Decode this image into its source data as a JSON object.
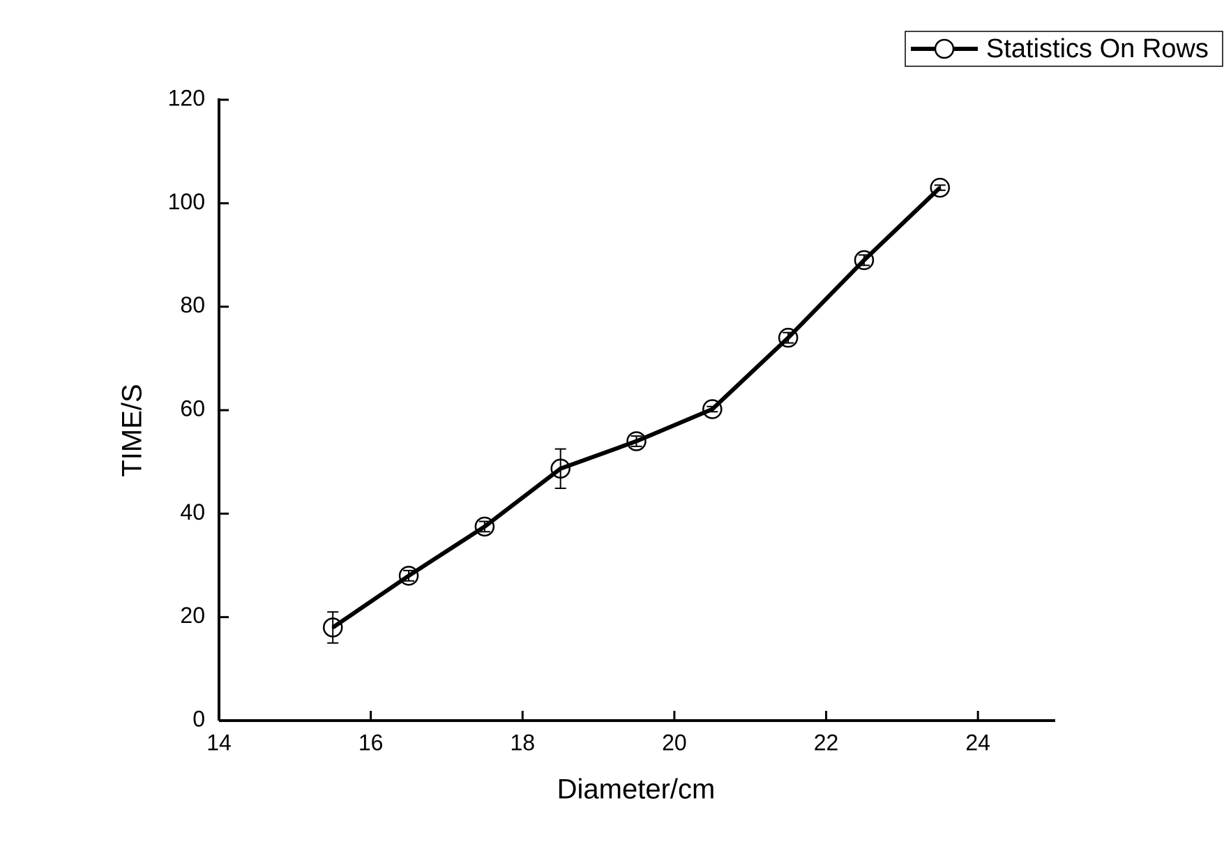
{
  "chart_data": {
    "type": "line",
    "x_label": "Diameter/cm",
    "y_label": "TIME/S",
    "x": [
      15.5,
      16.5,
      17.5,
      18.5,
      19.5,
      20.5,
      21.5,
      22.5,
      23.5
    ],
    "series": [
      {
        "name": "Statistics On Rows",
        "color": "#000000",
        "values": [
          18,
          28,
          37.5,
          48.7,
          54,
          60.2,
          74,
          89,
          103
        ],
        "errors": [
          3,
          1,
          1,
          3.8,
          1,
          0.5,
          1,
          1,
          0.5
        ]
      }
    ],
    "xlim": [
      14,
      25
    ],
    "xticks": [
      14,
      16,
      18,
      20,
      22,
      24
    ],
    "ylim": [
      0,
      120
    ],
    "yticks": [
      0,
      20,
      40,
      60,
      80,
      100,
      120
    ],
    "grid": false,
    "legend": "top-right"
  }
}
